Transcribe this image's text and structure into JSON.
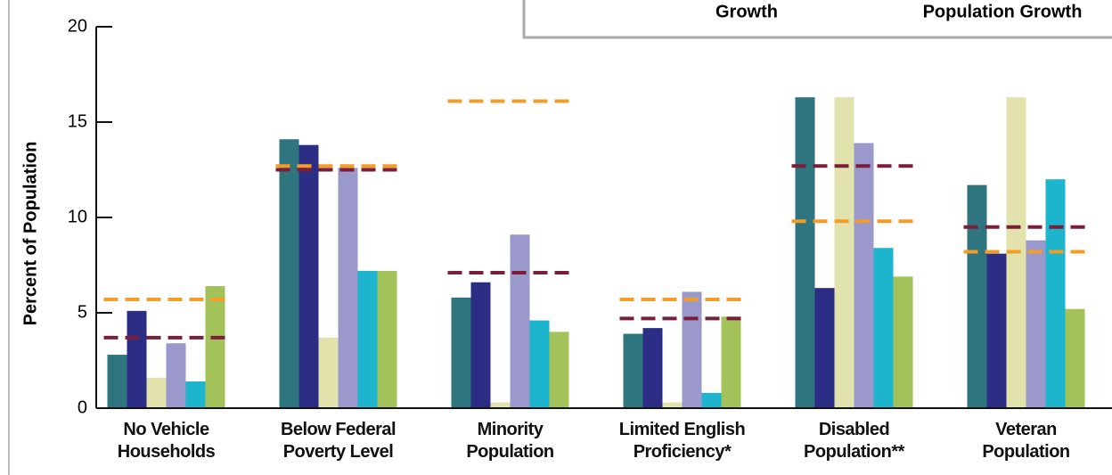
{
  "chart_data": {
    "type": "bar",
    "y_label": "Percent of Population",
    "legend_texts": [
      "Growth",
      "Population Growth"
    ],
    "categories": [
      "No Vehicle\nHouseholds",
      "Below Federal\nPoverty Level",
      "Minority\nPopulation",
      "Limited English\nProficiency*",
      "Disabled\nPopulation**",
      "Veteran\nPopulation"
    ],
    "series": [
      {
        "color": "#2e7580",
        "values": [
          2.8,
          14.1,
          5.8,
          3.9,
          16.3,
          11.7
        ]
      },
      {
        "color": "#2c2e85",
        "values": [
          5.1,
          13.8,
          6.6,
          4.2,
          6.3,
          8.1
        ]
      },
      {
        "color": "#e2e2ad",
        "values": [
          1.6,
          3.7,
          0.3,
          0.3,
          16.3,
          16.3
        ]
      },
      {
        "color": "#9b98cc",
        "values": [
          3.4,
          12.6,
          9.1,
          6.1,
          13.9,
          8.8
        ]
      },
      {
        "color": "#1db4cd",
        "values": [
          1.4,
          7.2,
          4.6,
          0.8,
          8.4,
          12.0
        ]
      },
      {
        "color": "#a3c35a",
        "values": [
          6.4,
          7.2,
          4.0,
          4.8,
          6.9,
          5.2
        ]
      }
    ],
    "reference_lines": [
      {
        "color": "#f39c28",
        "values": [
          5.7,
          12.7,
          16.1,
          5.7,
          9.8,
          8.2
        ]
      },
      {
        "color": "#7a1e3a",
        "values": [
          3.7,
          12.5,
          7.1,
          4.7,
          12.7,
          9.5
        ]
      }
    ],
    "ylim": [
      0,
      20
    ],
    "yticks": [
      0,
      5,
      10,
      15,
      20
    ]
  }
}
